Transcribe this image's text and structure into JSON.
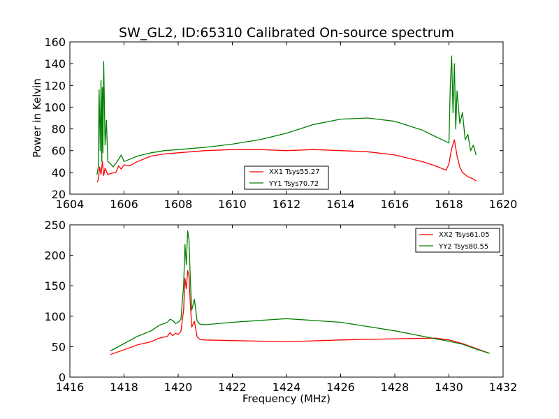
{
  "figure": {
    "title": "SW_GL2, ID:65310 Calibrated On-source spectrum"
  },
  "chart_data": [
    {
      "type": "line",
      "panel": "top",
      "xlabel": "",
      "ylabel": "Power in Kelvin",
      "xlim": [
        1604,
        1620
      ],
      "ylim": [
        20,
        160
      ],
      "xticks": [
        "1604",
        "1606",
        "1608",
        "1610",
        "1612",
        "1614",
        "1616",
        "1618",
        "1620"
      ],
      "yticks": [
        "20",
        "40",
        "60",
        "80",
        "100",
        "120",
        "140",
        "160"
      ],
      "legend_position": "lower-center",
      "series": [
        {
          "name": "XX1 Tsys55.27",
          "color": "#ff0000",
          "x": [
            1605.0,
            1605.05,
            1605.1,
            1605.15,
            1605.2,
            1605.25,
            1605.3,
            1605.4,
            1605.5,
            1605.7,
            1605.8,
            1605.9,
            1606.0,
            1606.2,
            1606.5,
            1607.0,
            1607.5,
            1608.0,
            1609.0,
            1610.0,
            1611.0,
            1612.0,
            1613.0,
            1614.0,
            1615.0,
            1616.0,
            1616.5,
            1617.0,
            1617.5,
            1617.9,
            1618.0,
            1618.1,
            1618.2,
            1618.3,
            1618.4,
            1618.5,
            1618.6,
            1618.7,
            1618.8,
            1618.9,
            1619.0
          ],
          "values": [
            31,
            33,
            45,
            38,
            50,
            37,
            44,
            38,
            39,
            40,
            46,
            43,
            47,
            46,
            50,
            55,
            57,
            58,
            60,
            61,
            61,
            60,
            61,
            60,
            59,
            56,
            53,
            50,
            46,
            42,
            48,
            62,
            70,
            55,
            45,
            40,
            38,
            36,
            35,
            34,
            32
          ]
        },
        {
          "name": "YY1 Tsys70.72",
          "color": "#008000",
          "x": [
            1605.0,
            1605.05,
            1605.08,
            1605.12,
            1605.15,
            1605.18,
            1605.2,
            1605.22,
            1605.25,
            1605.3,
            1605.35,
            1605.4,
            1605.5,
            1605.6,
            1605.8,
            1605.9,
            1606.0,
            1606.2,
            1606.5,
            1607.0,
            1607.5,
            1608.0,
            1609.0,
            1610.0,
            1611.0,
            1612.0,
            1613.0,
            1614.0,
            1615.0,
            1616.0,
            1617.0,
            1617.5,
            1618.0,
            1618.05,
            1618.1,
            1618.15,
            1618.2,
            1618.25,
            1618.3,
            1618.4,
            1618.5,
            1618.6,
            1618.7,
            1618.8,
            1618.9,
            1619.0
          ],
          "values": [
            38,
            45,
            116,
            60,
            125,
            50,
            118,
            58,
            142,
            65,
            88,
            50,
            48,
            45,
            52,
            56,
            50,
            52,
            55,
            58,
            60,
            61,
            63,
            66,
            70,
            76,
            84,
            89,
            90,
            87,
            79,
            73,
            67,
            120,
            147,
            95,
            140,
            80,
            115,
            85,
            95,
            70,
            75,
            60,
            65,
            56
          ]
        }
      ]
    },
    {
      "type": "line",
      "panel": "bottom",
      "xlabel": "Frequency (MHz)",
      "ylabel": "",
      "xlim": [
        1416,
        1432
      ],
      "ylim": [
        0,
        250
      ],
      "xticks": [
        "1416",
        "1418",
        "1420",
        "1422",
        "1424",
        "1426",
        "1428",
        "1430",
        "1432"
      ],
      "yticks": [
        "0",
        "50",
        "100",
        "150",
        "200",
        "250"
      ],
      "legend_position": "upper-right",
      "series": [
        {
          "name": "XX2 Tsys61.05",
          "color": "#ff0000",
          "x": [
            1417.5,
            1418.0,
            1418.5,
            1419.0,
            1419.3,
            1419.6,
            1419.7,
            1419.8,
            1419.9,
            1420.0,
            1420.1,
            1420.2,
            1420.25,
            1420.3,
            1420.35,
            1420.4,
            1420.45,
            1420.5,
            1420.6,
            1420.7,
            1420.8,
            1421.0,
            1422.0,
            1424.0,
            1426.0,
            1428.0,
            1429.5,
            1430.0,
            1430.5,
            1431.0,
            1431.5
          ],
          "values": [
            37,
            45,
            53,
            58,
            64,
            67,
            73,
            68,
            72,
            70,
            75,
            110,
            162,
            145,
            175,
            165,
            120,
            82,
            92,
            66,
            62,
            61,
            60,
            58,
            61,
            63,
            64,
            61,
            55,
            47,
            39
          ]
        },
        {
          "name": "YY2 Tsys80.55",
          "color": "#008000",
          "x": [
            1417.5,
            1418.0,
            1418.5,
            1419.0,
            1419.3,
            1419.6,
            1419.7,
            1419.8,
            1419.9,
            1420.0,
            1420.1,
            1420.2,
            1420.25,
            1420.3,
            1420.35,
            1420.4,
            1420.45,
            1420.5,
            1420.6,
            1420.7,
            1420.8,
            1421.0,
            1422.0,
            1424.0,
            1426.0,
            1428.0,
            1429.5,
            1430.0,
            1430.5,
            1431.0,
            1431.5
          ],
          "values": [
            43,
            55,
            67,
            76,
            85,
            90,
            95,
            93,
            88,
            90,
            95,
            150,
            218,
            185,
            240,
            225,
            160,
            110,
            128,
            92,
            87,
            86,
            90,
            96,
            90,
            76,
            63,
            59,
            54,
            46,
            39
          ]
        }
      ]
    }
  ]
}
